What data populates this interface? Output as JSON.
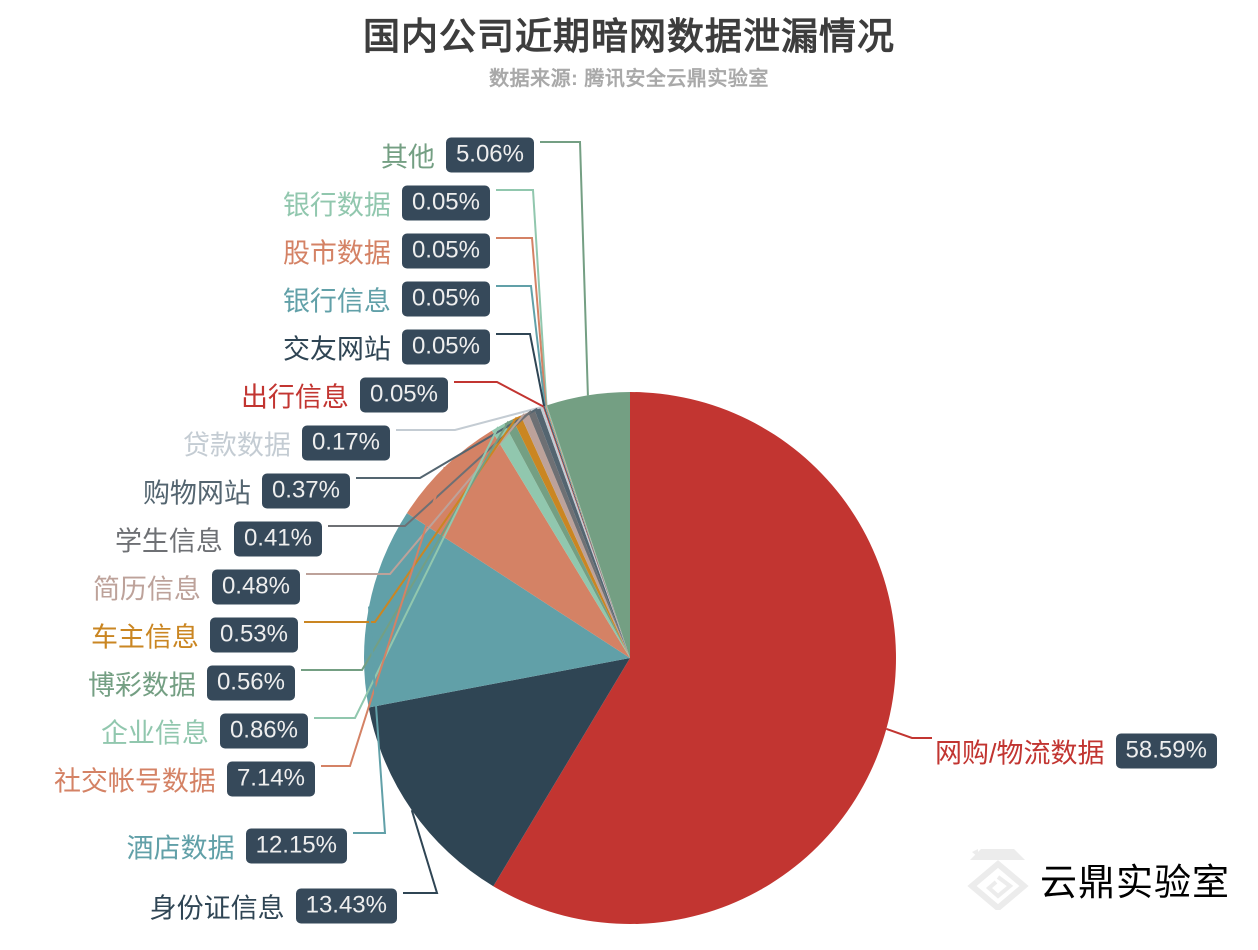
{
  "title": "国内公司近期暗网数据泄漏情况",
  "subtitle": "数据来源: 腾讯安全云鼎实验室",
  "watermark": {
    "text": "云鼎实验室",
    "color": "#ececec"
  },
  "badge_style": {
    "bg": "#36495a",
    "text_color": "#eeeeee"
  },
  "chart_data": {
    "type": "pie",
    "title": "国内公司近期暗网数据泄漏情况",
    "subtitle": "数据来源: 腾讯安全云鼎实验室",
    "start_angle": "12-o'clock",
    "direction": "clockwise",
    "label_position": "outside-with-leader-lines",
    "legend": "none",
    "total_percent": 100,
    "slices": [
      {
        "name": "网购/物流数据",
        "value": 58.59,
        "pct": "58.59%",
        "color": "#c23531"
      },
      {
        "name": "身份证信息",
        "value": 13.43,
        "pct": "13.43%",
        "color": "#2f4554"
      },
      {
        "name": "酒店数据",
        "value": 12.15,
        "pct": "12.15%",
        "color": "#61a0a8"
      },
      {
        "name": "社交帐号数据",
        "value": 7.14,
        "pct": "7.14%",
        "color": "#d48265"
      },
      {
        "name": "企业信息",
        "value": 0.86,
        "pct": "0.86%",
        "color": "#91c7ae"
      },
      {
        "name": "博彩数据",
        "value": 0.56,
        "pct": "0.56%",
        "color": "#749f83"
      },
      {
        "name": "车主信息",
        "value": 0.53,
        "pct": "0.53%",
        "color": "#ca8622"
      },
      {
        "name": "简历信息",
        "value": 0.48,
        "pct": "0.48%",
        "color": "#bda29a"
      },
      {
        "name": "学生信息",
        "value": 0.41,
        "pct": "0.41%",
        "color": "#6e7074"
      },
      {
        "name": "购物网站",
        "value": 0.37,
        "pct": "0.37%",
        "color": "#546570"
      },
      {
        "name": "贷款数据",
        "value": 0.17,
        "pct": "0.17%",
        "color": "#c4ccd3"
      },
      {
        "name": "出行信息",
        "value": 0.05,
        "pct": "0.05%",
        "color": "#c23531"
      },
      {
        "name": "交友网站",
        "value": 0.05,
        "pct": "0.05%",
        "color": "#2f4554"
      },
      {
        "name": "银行信息",
        "value": 0.05,
        "pct": "0.05%",
        "color": "#61a0a8"
      },
      {
        "name": "股市数据",
        "value": 0.05,
        "pct": "0.05%",
        "color": "#d48265"
      },
      {
        "name": "银行数据",
        "value": 0.05,
        "pct": "0.05%",
        "color": "#91c7ae"
      },
      {
        "name": "其他",
        "value": 5.06,
        "pct": "5.06%",
        "color": "#749f83"
      }
    ]
  }
}
